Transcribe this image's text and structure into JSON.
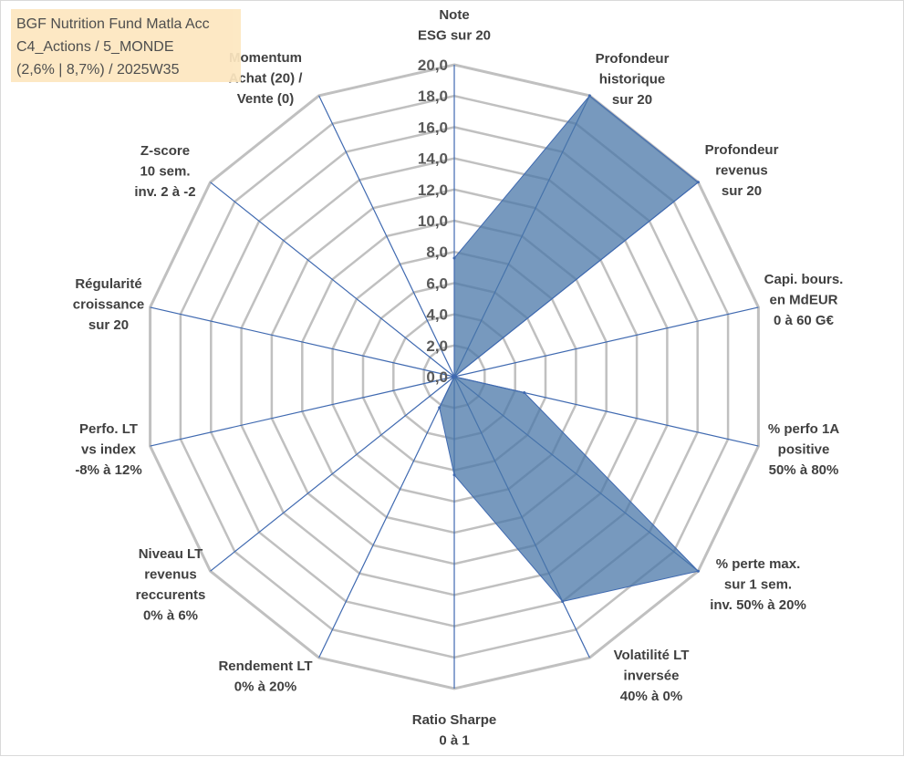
{
  "title_box": {
    "line1": "BGF Nutrition Fund Matla Acc",
    "line2": "C4_Actions / 5_MONDE",
    "line3": "(2,6% | 8,7%) / 2025W35"
  },
  "colors": {
    "fill": "#4a77a8",
    "fill_opacity": 0.75,
    "grid": "#c0c0c0",
    "spoke": "#3f69b0"
  },
  "chart_data": {
    "type": "radar",
    "rmin": 0,
    "rmax": 20,
    "tick_step": 2,
    "tick_labels": [
      "0,0",
      "2,0",
      "4,0",
      "6,0",
      "8,0",
      "10,0",
      "12,0",
      "14,0",
      "16,0",
      "18,0",
      "20,0"
    ],
    "axes": [
      [
        "Note",
        "ESG sur 20"
      ],
      [
        "Profondeur",
        "historique",
        "sur 20"
      ],
      [
        "Profondeur",
        "revenus",
        "sur 20"
      ],
      [
        "Capi. bours.",
        "en MdEUR",
        "0 à 60 G€"
      ],
      [
        "% perfo 1A",
        "positive",
        "50% à 80%"
      ],
      [
        "% perte max.",
        "sur 1 sem.",
        "inv. 50% à 20%"
      ],
      [
        "Volatilité LT",
        "inversée",
        "40% à 0%"
      ],
      [
        "Ratio Sharpe",
        "0 à 1"
      ],
      [
        "Rendement LT",
        "0% à 20%"
      ],
      [
        "Niveau LT",
        "revenus",
        "reccurents",
        "0% à 6%"
      ],
      [
        "Perfo. LT",
        "vs index",
        "-8% à 12%"
      ],
      [
        "Régularité",
        "croissance",
        "sur 20"
      ],
      [
        "Z-score",
        "10 sem.",
        "inv. 2 à -2"
      ],
      [
        "Momentum",
        "Achat (20) /",
        "Vente (0)"
      ]
    ],
    "values": [
      7.6,
      20,
      20,
      0,
      4.6,
      20,
      16,
      6.3,
      2.2,
      0,
      0,
      0,
      0,
      0
    ],
    "grid": true,
    "legend": "none"
  }
}
